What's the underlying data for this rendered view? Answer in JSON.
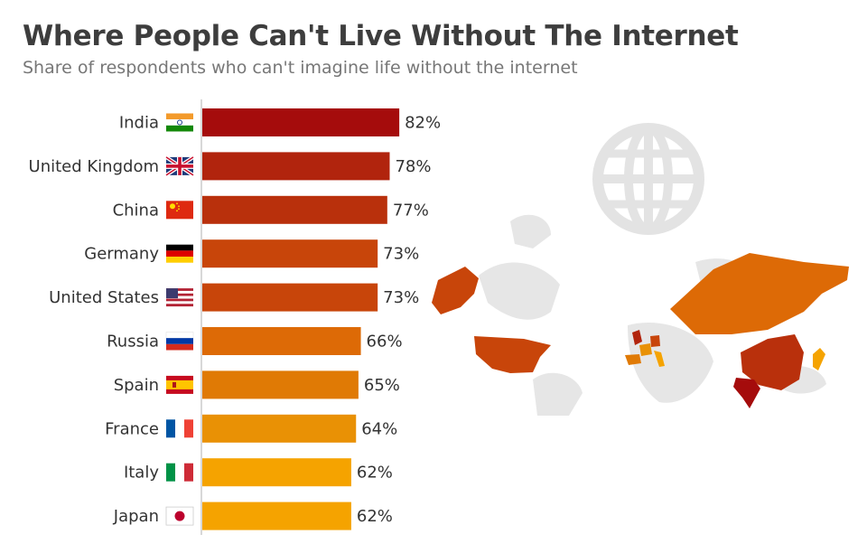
{
  "title": "Where People Can't Live Without The Internet",
  "subtitle": "Share of respondents who can't imagine life without the internet",
  "chart_data": {
    "type": "bar",
    "orientation": "horizontal",
    "categories": [
      "India",
      "United Kingdom",
      "China",
      "Germany",
      "United States",
      "Russia",
      "Spain",
      "France",
      "Italy",
      "Japan"
    ],
    "values": [
      82,
      78,
      77,
      73,
      73,
      66,
      65,
      64,
      62,
      62
    ],
    "value_labels": [
      "82%",
      "78%",
      "77%",
      "73%",
      "73%",
      "66%",
      "65%",
      "64%",
      "62%",
      "62%"
    ],
    "unit": "%",
    "xlim": [
      0,
      100
    ],
    "grid": false,
    "legend": "none",
    "flags": [
      "india-flag",
      "uk-flag",
      "china-flag",
      "germany-flag",
      "usa-flag",
      "russia-flag",
      "spain-flag",
      "france-flag",
      "italy-flag",
      "japan-flag"
    ],
    "bar_colors": [
      "#a50c0c",
      "#b1240d",
      "#b9300c",
      "#c8450a",
      "#c8450a",
      "#dd6a06",
      "#e07a05",
      "#e99105",
      "#f5a300",
      "#f5a300"
    ]
  },
  "decoration": {
    "globe_icon": "globe-icon",
    "world_map": "world-map"
  }
}
